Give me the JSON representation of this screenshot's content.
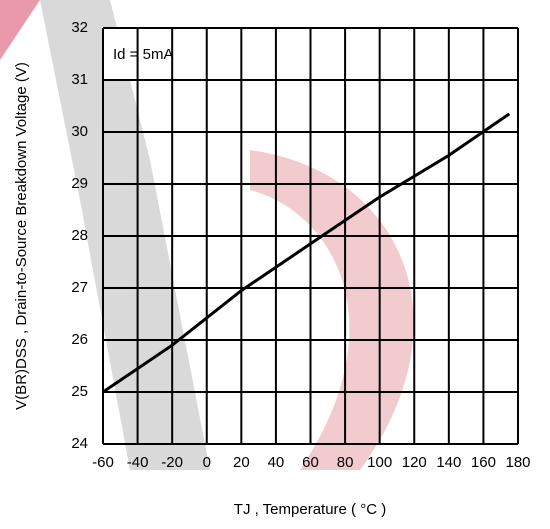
{
  "chart_data": {
    "type": "line",
    "ylabel": "V(BR)DSS , Drain-to-Source Breakdown Voltage (V)",
    "xlabel": "TJ , Temperature ( °C )",
    "annotation": "Id = 5mA",
    "x": [
      -60,
      -20,
      20,
      60,
      100,
      140,
      175
    ],
    "series": [
      {
        "color": "#000000",
        "values": [
          25,
          25.9,
          26.95,
          27.85,
          28.75,
          29.55,
          30.35
        ]
      }
    ],
    "xlim": [
      -60,
      180
    ],
    "xticks": [
      -60,
      -40,
      -20,
      0,
      20,
      40,
      60,
      80,
      100,
      120,
      140,
      160,
      180
    ],
    "ylim": [
      24,
      32
    ],
    "yticks": [
      24,
      25,
      26,
      27,
      28,
      29,
      30,
      31,
      32
    ],
    "grid": true
  }
}
